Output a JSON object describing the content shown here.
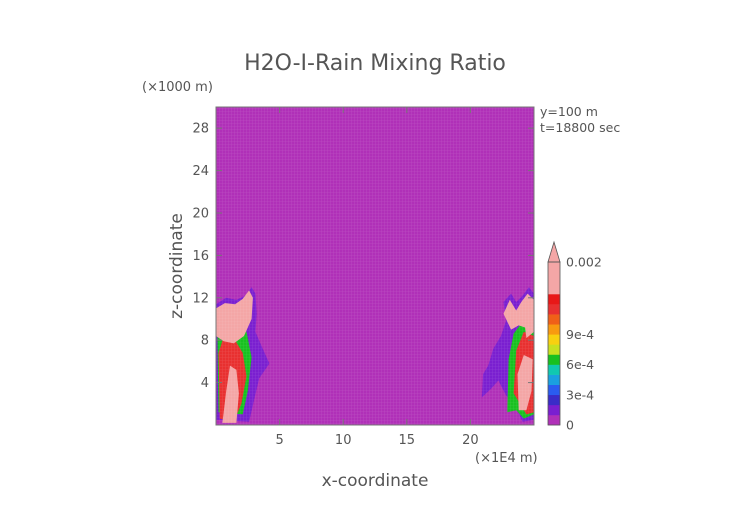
{
  "chart_data": {
    "type": "heatmap",
    "title": "H2O-I-Rain Mixing Ratio",
    "xlabel": "x-coordinate",
    "ylabel": "z-coordinate",
    "x_scale_label": "(×1E4 m)",
    "y_scale_label": "(×1000 m)",
    "xlim": [
      0,
      25
    ],
    "ylim": [
      0,
      30
    ],
    "x_ticks": [
      5,
      10,
      15,
      20
    ],
    "y_ticks": [
      4,
      8,
      12,
      16,
      20,
      24,
      28
    ],
    "annotations": [
      "y=100 m",
      "t=18800 sec"
    ],
    "background_value": 0,
    "background_color": "#b030b8",
    "colorbar": {
      "labels": [
        {
          "text": "0",
          "value": 0
        },
        {
          "text": "3e-4",
          "value": 0.0003
        },
        {
          "text": "6e-4",
          "value": 0.0006
        },
        {
          "text": "9e-4",
          "value": 0.0009
        },
        {
          "text": "0.002",
          "value": 0.002
        }
      ],
      "levels": [
        {
          "value": 0.0,
          "color": "#b030b8"
        },
        {
          "value": 0.0001,
          "color": "#7a1fd0"
        },
        {
          "value": 0.0002,
          "color": "#3a2cc8"
        },
        {
          "value": 0.0003,
          "color": "#2a5cf0"
        },
        {
          "value": 0.0004,
          "color": "#1aa0e0"
        },
        {
          "value": 0.0005,
          "color": "#10c8b0"
        },
        {
          "value": 0.0006,
          "color": "#18c020"
        },
        {
          "value": 0.0007,
          "color": "#c8e020"
        },
        {
          "value": 0.0008,
          "color": "#f8d010"
        },
        {
          "value": 0.0009,
          "color": "#f89a10"
        },
        {
          "value": 0.001,
          "color": "#f06018"
        },
        {
          "value": 0.0012,
          "color": "#e83030"
        },
        {
          "value": 0.0015,
          "color": "#e81818"
        },
        {
          "value": 0.002,
          "color": "#f4a6a6"
        }
      ]
    },
    "features": [
      {
        "name": "left-storm-outer",
        "value": 0.0001,
        "points": [
          [
            0,
            0.5
          ],
          [
            0,
            11.4
          ],
          [
            0.8,
            12
          ],
          [
            1.6,
            11.8
          ],
          [
            2.3,
            12.2
          ],
          [
            2.8,
            13
          ],
          [
            3.1,
            12.4
          ],
          [
            3.2,
            10.5
          ],
          [
            3.1,
            8.8
          ],
          [
            3.6,
            7.4
          ],
          [
            4.2,
            5.8
          ],
          [
            3.4,
            4.4
          ],
          [
            3.0,
            2.4
          ],
          [
            2.6,
            0.3
          ]
        ]
      },
      {
        "name": "left-storm-green",
        "value": 0.0006,
        "points": [
          [
            0.2,
            1.2
          ],
          [
            0.1,
            9.2
          ],
          [
            1.0,
            10.2
          ],
          [
            1.6,
            9.2
          ],
          [
            2.4,
            8.8
          ],
          [
            2.8,
            6.4
          ],
          [
            2.5,
            3.2
          ],
          [
            2.1,
            1.0
          ]
        ]
      },
      {
        "name": "left-storm-red",
        "value": 0.0012,
        "points": [
          [
            0.3,
            0.6
          ],
          [
            0.2,
            6.8
          ],
          [
            0.9,
            9.4
          ],
          [
            1.5,
            8.0
          ],
          [
            2.1,
            6.8
          ],
          [
            2.4,
            4.6
          ],
          [
            2.0,
            2.0
          ],
          [
            1.4,
            0.3
          ]
        ]
      },
      {
        "name": "left-anvil-pink",
        "value": 0.002,
        "points": [
          [
            0,
            8.4
          ],
          [
            0,
            11.0
          ],
          [
            0.7,
            11.5
          ],
          [
            1.5,
            11.4
          ],
          [
            2.1,
            11.9
          ],
          [
            2.6,
            12.7
          ],
          [
            2.9,
            12.0
          ],
          [
            2.8,
            10.0
          ],
          [
            2.2,
            8.4
          ],
          [
            1.4,
            7.7
          ],
          [
            0.6,
            7.9
          ]
        ]
      },
      {
        "name": "left-core-pink",
        "value": 0.002,
        "points": [
          [
            0.5,
            0.2
          ],
          [
            0.8,
            3.2
          ],
          [
            1.1,
            5.6
          ],
          [
            1.6,
            5.2
          ],
          [
            1.8,
            3.0
          ],
          [
            1.6,
            0.2
          ]
        ]
      },
      {
        "name": "right-storm-outer",
        "value": 0.0001,
        "points": [
          [
            20.9,
            2.6
          ],
          [
            21.0,
            4.8
          ],
          [
            21.4,
            5.6
          ],
          [
            21.8,
            7.2
          ],
          [
            22.4,
            8.4
          ],
          [
            22.8,
            9.8
          ],
          [
            22.6,
            11.6
          ],
          [
            23.2,
            12.4
          ],
          [
            23.6,
            11.6
          ],
          [
            24.1,
            12.2
          ],
          [
            24.6,
            13.0
          ],
          [
            25,
            12.4
          ],
          [
            25,
            0.5
          ],
          [
            24.1,
            0.3
          ],
          [
            23.6,
            1.6
          ],
          [
            22.8,
            2.8
          ],
          [
            22.2,
            4.2
          ],
          [
            21.6,
            3.4
          ]
        ]
      },
      {
        "name": "right-storm-green",
        "value": 0.0006,
        "points": [
          [
            22.9,
            1.2
          ],
          [
            23.0,
            6.2
          ],
          [
            23.4,
            8.6
          ],
          [
            24.0,
            9.6
          ],
          [
            24.6,
            10.0
          ],
          [
            25,
            8.8
          ],
          [
            25,
            1.0
          ],
          [
            24.2,
            0.6
          ],
          [
            23.6,
            1.4
          ]
        ]
      },
      {
        "name": "right-storm-red",
        "value": 0.0012,
        "points": [
          [
            23.4,
            3.0
          ],
          [
            23.6,
            7.0
          ],
          [
            24.2,
            8.8
          ],
          [
            25,
            8.4
          ],
          [
            25,
            1.2
          ],
          [
            24.4,
            1.0
          ],
          [
            23.9,
            2.0
          ]
        ]
      },
      {
        "name": "right-anvil-pink",
        "value": 0.002,
        "points": [
          [
            22.6,
            10.5
          ],
          [
            23.1,
            11.8
          ],
          [
            23.6,
            10.8
          ],
          [
            24.0,
            11.6
          ],
          [
            24.5,
            12.4
          ],
          [
            25,
            11.8
          ],
          [
            25,
            8.8
          ],
          [
            24.4,
            8.2
          ],
          [
            24.3,
            9.2
          ],
          [
            23.8,
            9.4
          ],
          [
            23.2,
            9.0
          ]
        ]
      },
      {
        "name": "right-column-pink",
        "value": 0.002,
        "points": [
          [
            23.8,
            1.4
          ],
          [
            23.7,
            4.8
          ],
          [
            24.2,
            6.6
          ],
          [
            24.9,
            6.2
          ],
          [
            24.8,
            3.2
          ],
          [
            24.4,
            1.4
          ]
        ]
      }
    ]
  }
}
